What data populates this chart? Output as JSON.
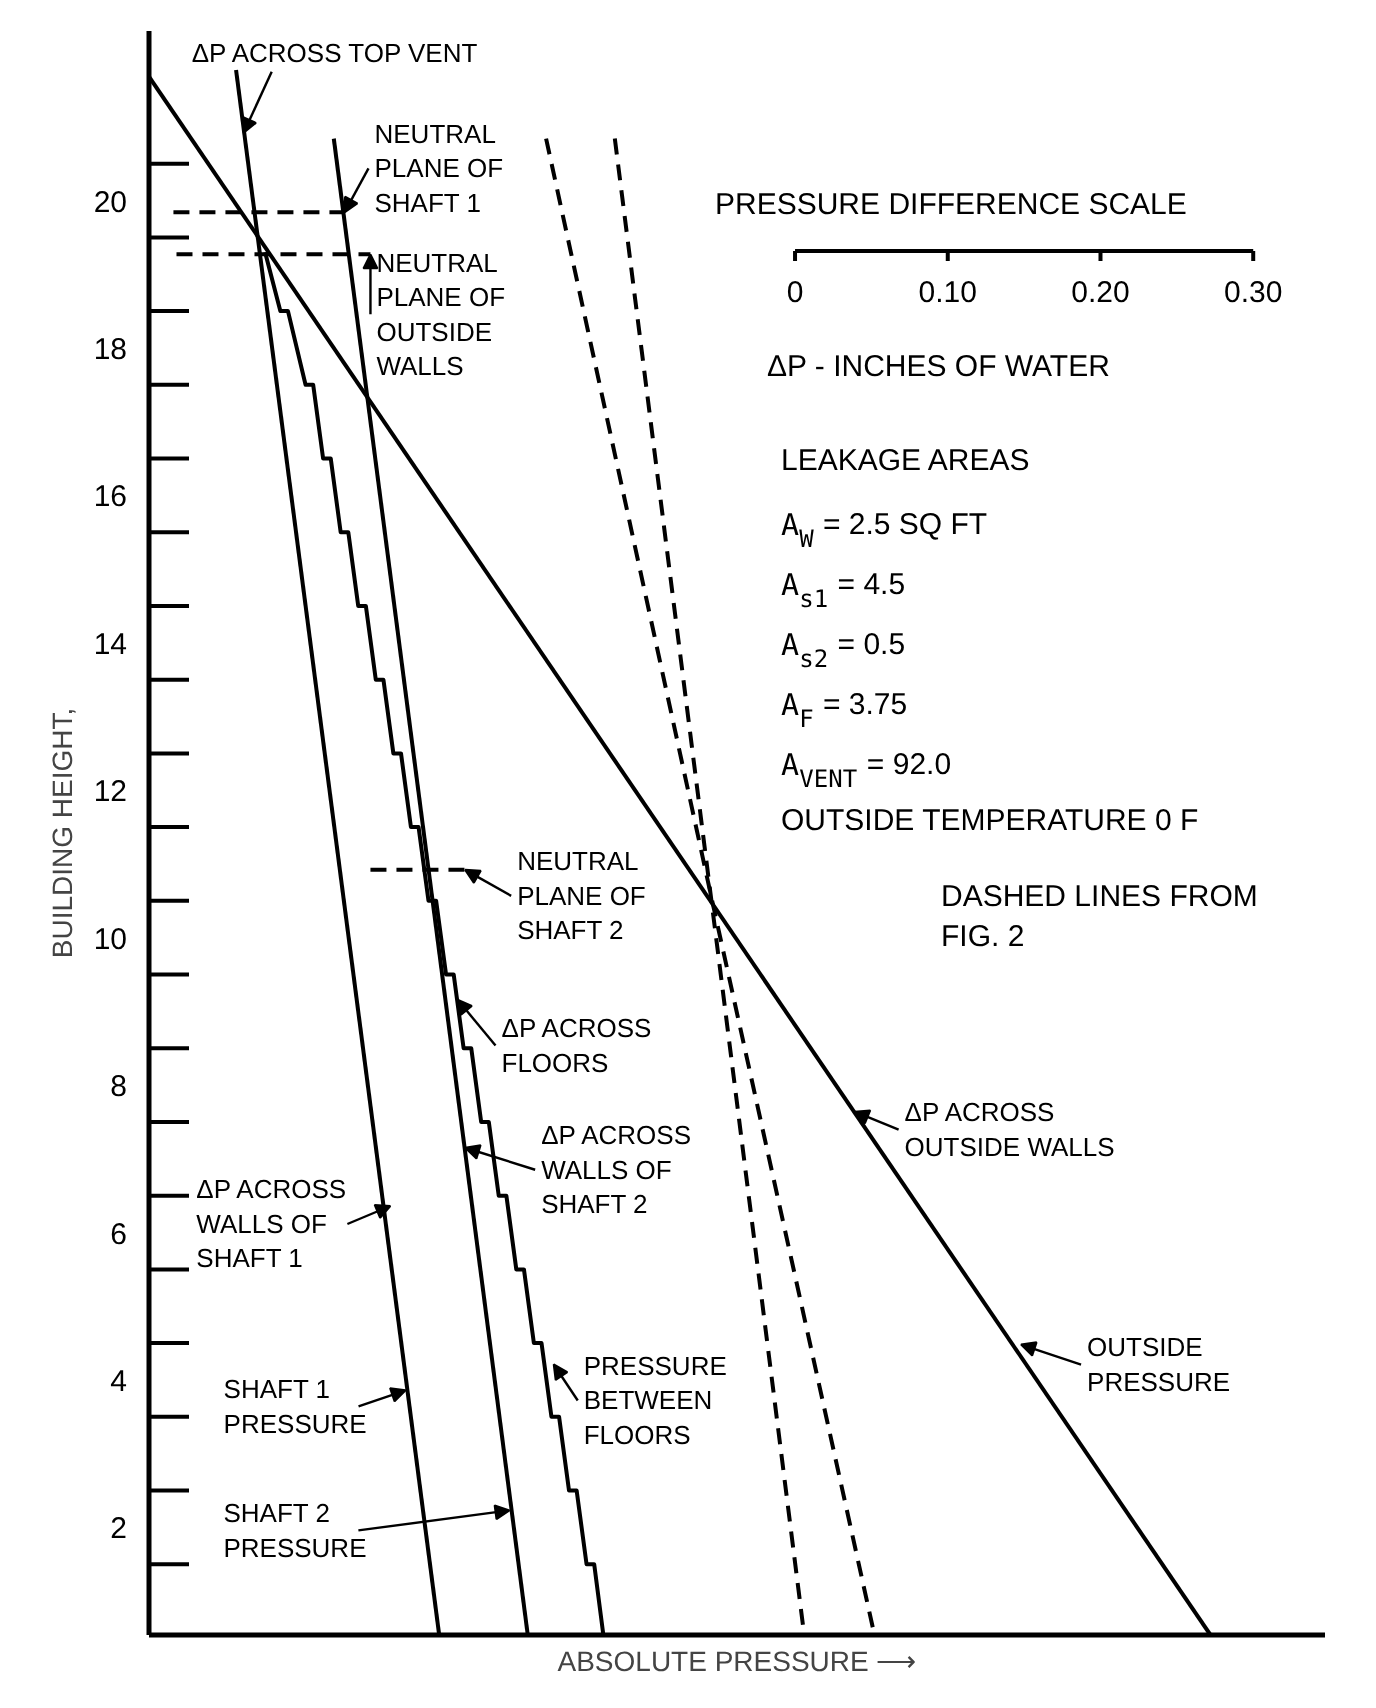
{
  "chart_data": {
    "type": "line",
    "xlabel": "ABSOLUTE PRESSURE ⟶",
    "ylabel": "BUILDING HEIGHT,",
    "xlim": [
      -0.423,
      0.347
    ],
    "ylim": [
      0.54,
      22.3
    ],
    "xticks": [
      0,
      {
        "value": 0.1,
        "label": "0.10"
      },
      {
        "value": 0.2,
        "label": "0.20"
      },
      {
        "value": 0.3,
        "label": "0.30"
      }
    ],
    "yticks": [
      2,
      4,
      6,
      8,
      10,
      12,
      14,
      16,
      18,
      20
    ],
    "marker": "none",
    "series": [
      {
        "color": "#000000",
        "line_style": "solid",
        "x": [
          -0.423,
          0.272
        ],
        "values": [
          21.68,
          0.54
        ]
      },
      {
        "color": "#000000",
        "line_style": "solid",
        "x": [
          -0.366,
          -0.233
        ],
        "values": [
          21.77,
          0.54
        ]
      },
      {
        "color": "#000000",
        "line_style": "solid",
        "x": [
          -0.302,
          -0.175
        ],
        "values": [
          20.84,
          0.54
        ]
      },
      {
        "color": "#000000",
        "line_style": "solid",
        "x": [
          -0.347,
          -0.337,
          -0.332,
          -0.3205,
          -0.3155,
          -0.309,
          -0.304,
          -0.2975,
          -0.2925,
          -0.286,
          -0.281,
          -0.2745,
          -0.2695,
          -0.263,
          -0.258,
          -0.2515,
          -0.2465,
          -0.24,
          -0.235,
          -0.2285,
          -0.2235,
          -0.217,
          -0.212,
          -0.2055,
          -0.2005,
          -0.194,
          -0.189,
          -0.1825,
          -0.1775,
          -0.171,
          -0.166,
          -0.1595,
          -0.1545,
          -0.148,
          -0.143,
          -0.1365,
          -0.1315,
          -0.1255
        ],
        "values": [
          19.3,
          18.5,
          18.5,
          17.5,
          17.5,
          16.5,
          16.5,
          15.5,
          15.5,
          14.5,
          14.5,
          13.5,
          13.5,
          12.5,
          12.5,
          11.5,
          11.5,
          10.5,
          10.5,
          9.5,
          9.5,
          8.5,
          8.5,
          7.5,
          7.5,
          6.5,
          6.5,
          5.5,
          5.5,
          4.5,
          4.5,
          3.5,
          3.5,
          2.5,
          2.5,
          1.5,
          1.5,
          0.54
        ]
      },
      {
        "color": "#000000",
        "line_style": "dashed",
        "x": [
          -0.163,
          -0.053,
          0.052
        ],
        "values": [
          20.84,
          10.38,
          0.54
        ]
      },
      {
        "color": "#000000",
        "line_style": "dashed",
        "x": [
          -0.118,
          -0.054,
          0.006
        ],
        "values": [
          20.84,
          10.38,
          0.54
        ]
      },
      {
        "color": "#000000",
        "line_style": "dashed",
        "x": [
          -0.407,
          -0.295
        ],
        "values": [
          19.84,
          19.84
        ]
      },
      {
        "color": "#000000",
        "line_style": "dashed",
        "x": [
          -0.405,
          -0.278
        ],
        "values": [
          19.27,
          19.27
        ]
      },
      {
        "color": "#000000",
        "line_style": "dashed",
        "x": [
          -0.278,
          -0.216
        ],
        "values": [
          10.92,
          10.92
        ]
      }
    ],
    "annotations": [
      {
        "text": "ΔP ACROSS TOP VENT",
        "x": -0.361,
        "y": 20.92
      },
      {
        "text": "NEUTRAL\nPLANE OF\nSHAFT 1",
        "x": -0.295,
        "y": 19.84
      },
      {
        "text": "NEUTRAL\nPLANE OF\nOUTSIDE\nWALLS",
        "x": -0.278,
        "y": 19.27
      },
      {
        "text": "NEUTRAL\nPLANE OF\nSHAFT 2",
        "x": -0.216,
        "y": 10.92
      },
      {
        "text": "ΔP ACROSS\nFLOORS",
        "x": -0.221,
        "y": 9.16
      },
      {
        "text": "ΔP ACROSS\nOUTSIDE WALLS",
        "x": 0.039,
        "y": 7.64
      },
      {
        "text": "ΔP ACROSS\nWALLS OF\nSHAFT 2",
        "x": -0.216,
        "y": 7.15
      },
      {
        "text": "ΔP ACROSS\nWALLS OF\nSHAFT 1",
        "x": -0.265,
        "y": 6.36
      },
      {
        "text": "SHAFT 1\nPRESSURE",
        "x": -0.255,
        "y": 3.86
      },
      {
        "text": "SHAFT 2\nPRESSURE",
        "x": -0.187,
        "y": 2.23
      },
      {
        "text": "PRESSURE\nBETWEEN\nFLOORS",
        "x": -0.158,
        "y": 4.21
      },
      {
        "text": "OUTSIDE\nPRESSURE",
        "x": 0.148,
        "y": 4.48
      },
      "PRESSURE DIFFERENCE SCALE",
      "ΔP - INCHES OF WATER",
      "LEAKAGE AREAS",
      "A$_{W}$ = 2.5 SQ FT",
      "A$_{s1}$ = 4.5",
      "A$_{s2}$ = 0.5",
      "A$_{F}$ = 3.75",
      "A$_{VENT}$ = 92.0",
      "OUTSIDE TEMPERATURE 0 F",
      "DASHED LINES FROM\nFIG. 2"
    ]
  }
}
